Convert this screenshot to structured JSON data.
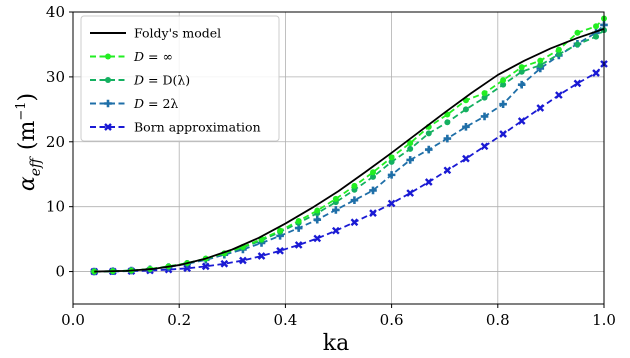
{
  "chart_data": {
    "type": "line",
    "title": "",
    "xlabel": "ka",
    "ylabel": {
      "base": "α",
      "sub": "eff",
      "unit_open": "(m",
      "unit_exp": "−1",
      "unit_close": ")"
    },
    "xlim": [
      0.0,
      1.0
    ],
    "ylim": [
      -5,
      40
    ],
    "xticks": [
      0.0,
      0.2,
      0.4,
      0.6,
      0.8,
      1.0
    ],
    "xtick_labels": [
      "0.0",
      "0.2",
      "0.4",
      "0.6",
      "0.8",
      "1.0"
    ],
    "yticks": [
      0,
      10,
      20,
      30,
      40
    ],
    "ytick_labels": [
      "0",
      "10",
      "20",
      "30",
      "40"
    ],
    "grid": true,
    "legend_position": "top-left",
    "series": [
      {
        "name": "Foldy's model",
        "color": "#000000",
        "style": "solid",
        "marker": "none",
        "x": [
          0.04,
          0.1,
          0.15,
          0.2,
          0.25,
          0.3,
          0.35,
          0.4,
          0.45,
          0.5,
          0.55,
          0.6,
          0.65,
          0.7,
          0.75,
          0.8,
          0.85,
          0.9,
          0.95,
          1.0
        ],
        "y": [
          0.0,
          0.1,
          0.4,
          1.0,
          2.0,
          3.4,
          5.2,
          7.4,
          9.8,
          12.4,
          15.3,
          18.3,
          21.4,
          24.5,
          27.5,
          30.3,
          32.5,
          34.4,
          36.0,
          37.4
        ]
      },
      {
        "name": "D = ∞",
        "label_parts": {
          "var": "D",
          "rel": " = ",
          "val": "∞"
        },
        "color": "#22ee22",
        "style": "dashed",
        "marker": "circle",
        "x": [
          0.04,
          0.075,
          0.11,
          0.145,
          0.18,
          0.215,
          0.25,
          0.285,
          0.32,
          0.355,
          0.39,
          0.425,
          0.46,
          0.495,
          0.53,
          0.565,
          0.6,
          0.635,
          0.67,
          0.705,
          0.74,
          0.775,
          0.81,
          0.845,
          0.88,
          0.915,
          0.95,
          0.985,
          1.0
        ],
        "y": [
          0.0,
          0.05,
          0.15,
          0.4,
          0.8,
          1.3,
          2.0,
          2.8,
          3.8,
          5.0,
          6.3,
          7.8,
          9.4,
          11.2,
          13.2,
          15.3,
          17.6,
          19.8,
          22.3,
          24.2,
          26.4,
          27.5,
          29.5,
          31.5,
          32.5,
          34.2,
          36.8,
          37.8,
          39.0
        ]
      },
      {
        "name": "D = D(λ)",
        "label_parts": {
          "var": "D",
          "rel": " = ",
          "val": "D(λ)"
        },
        "color": "#14b060",
        "style": "dashed",
        "marker": "circle",
        "x": [
          0.04,
          0.075,
          0.11,
          0.145,
          0.18,
          0.215,
          0.25,
          0.285,
          0.32,
          0.355,
          0.39,
          0.425,
          0.46,
          0.495,
          0.53,
          0.565,
          0.6,
          0.635,
          0.67,
          0.705,
          0.74,
          0.775,
          0.81,
          0.845,
          0.88,
          0.915,
          0.95,
          0.985,
          1.0
        ],
        "y": [
          0.0,
          0.05,
          0.15,
          0.4,
          0.8,
          1.3,
          2.0,
          2.8,
          3.7,
          4.8,
          6.1,
          7.5,
          9.0,
          10.7,
          12.6,
          14.6,
          16.9,
          18.9,
          21.3,
          23.0,
          25.0,
          26.8,
          28.8,
          30.8,
          31.8,
          33.5,
          35.0,
          36.2,
          37.2
        ]
      },
      {
        "name": "D = 2λ",
        "label_parts": {
          "var": "D",
          "rel": " = ",
          "val": "2λ"
        },
        "color": "#1f6fa8",
        "style": "dashed",
        "marker": "plus",
        "x": [
          0.04,
          0.075,
          0.11,
          0.145,
          0.18,
          0.215,
          0.25,
          0.285,
          0.32,
          0.355,
          0.39,
          0.425,
          0.46,
          0.495,
          0.53,
          0.565,
          0.6,
          0.635,
          0.67,
          0.705,
          0.74,
          0.775,
          0.81,
          0.845,
          0.88,
          0.915,
          0.95,
          0.985,
          1.0
        ],
        "y": [
          0.0,
          0.05,
          0.15,
          0.35,
          0.7,
          1.2,
          1.8,
          2.6,
          3.4,
          4.4,
          5.5,
          6.7,
          8.0,
          9.5,
          11.0,
          12.5,
          14.9,
          17.2,
          18.8,
          20.5,
          22.3,
          23.9,
          25.8,
          28.8,
          31.3,
          33.3,
          35.1,
          36.8,
          38.0
        ]
      },
      {
        "name": "Born approximation",
        "color": "#1a1ad4",
        "style": "dashed",
        "marker": "x",
        "x": [
          0.04,
          0.075,
          0.11,
          0.145,
          0.18,
          0.215,
          0.25,
          0.285,
          0.32,
          0.355,
          0.39,
          0.425,
          0.46,
          0.495,
          0.53,
          0.565,
          0.6,
          0.635,
          0.67,
          0.705,
          0.74,
          0.775,
          0.81,
          0.845,
          0.88,
          0.915,
          0.95,
          0.985,
          1.0
        ],
        "y": [
          0.0,
          0.02,
          0.07,
          0.15,
          0.3,
          0.5,
          0.8,
          1.2,
          1.7,
          2.4,
          3.2,
          4.1,
          5.1,
          6.3,
          7.6,
          9.0,
          10.5,
          12.1,
          13.8,
          15.6,
          17.4,
          19.3,
          21.2,
          23.2,
          25.2,
          27.2,
          29.0,
          30.6,
          32.0
        ]
      }
    ]
  }
}
